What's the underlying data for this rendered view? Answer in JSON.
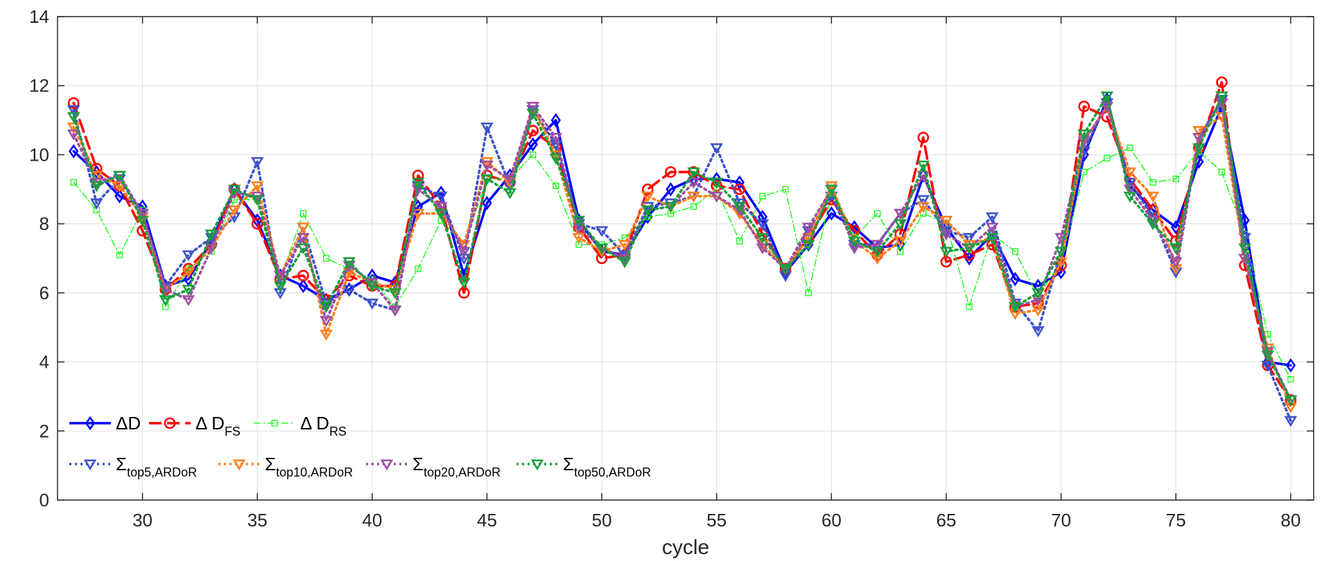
{
  "chart_data": {
    "type": "line",
    "title": "",
    "xlabel": "cycle",
    "ylabel": "",
    "xlim": [
      26.3,
      81.0
    ],
    "ylim": [
      0,
      14
    ],
    "xticks": [
      30,
      35,
      40,
      45,
      50,
      55,
      60,
      65,
      70,
      75,
      80
    ],
    "yticks": [
      0,
      2,
      4,
      6,
      8,
      10,
      12,
      14
    ],
    "grid": true,
    "legend_location": "bottom-left",
    "x": [
      27,
      28,
      29,
      30,
      31,
      32,
      33,
      34,
      35,
      36,
      37,
      38,
      39,
      40,
      41,
      42,
      43,
      44,
      45,
      46,
      47,
      48,
      49,
      50,
      51,
      52,
      53,
      54,
      55,
      56,
      57,
      58,
      59,
      60,
      61,
      62,
      63,
      64,
      65,
      66,
      67,
      68,
      69,
      70,
      71,
      72,
      73,
      74,
      75,
      76,
      77,
      78,
      79,
      80
    ],
    "series": [
      {
        "name": "ΔD",
        "label_main": "ΔD",
        "label_sub": "",
        "color": "#0000ff",
        "dash": "",
        "width": 3.6,
        "marker": "diamond",
        "marker_size": 7,
        "values": [
          10.1,
          9.5,
          8.8,
          8.5,
          6.2,
          6.4,
          7.5,
          9.0,
          8.1,
          6.5,
          6.2,
          5.8,
          6.1,
          6.5,
          6.3,
          8.5,
          8.9,
          6.5,
          8.6,
          9.4,
          10.3,
          11.0,
          8.1,
          7.2,
          7.1,
          8.2,
          9.0,
          9.3,
          9.3,
          9.2,
          8.2,
          6.6,
          7.4,
          8.3,
          7.9,
          7.3,
          7.4,
          9.4,
          7.9,
          7.0,
          7.7,
          6.4,
          6.2,
          6.6,
          10.0,
          11.6,
          9.1,
          8.4,
          7.9,
          9.8,
          11.4,
          8.1,
          4.0,
          3.9
        ]
      },
      {
        "name": "Δ D_FS",
        "label_main": "Δ D",
        "label_sub": "FS",
        "color": "#ff0000",
        "dash": "18,8",
        "width": 3.6,
        "marker": "circle",
        "marker_size": 7,
        "values": [
          11.5,
          9.6,
          9.1,
          7.8,
          6.1,
          6.7,
          7.4,
          9.0,
          8.0,
          6.4,
          6.5,
          5.8,
          6.5,
          6.2,
          6.2,
          9.4,
          8.5,
          6.0,
          9.4,
          9.2,
          10.7,
          10.2,
          7.9,
          7.0,
          7.1,
          9.0,
          9.5,
          9.5,
          9.1,
          9.0,
          7.7,
          6.7,
          7.6,
          8.7,
          7.8,
          7.1,
          7.7,
          10.5,
          6.9,
          7.1,
          7.4,
          5.6,
          5.7,
          6.8,
          11.4,
          11.1,
          9.3,
          8.4,
          7.5,
          10.2,
          12.1,
          6.8,
          3.9,
          2.9
        ]
      },
      {
        "name": "Δ D_RS",
        "label_main": "Δ D",
        "label_sub": "RS",
        "color": "#00ff00",
        "dash": "10,4,2,4",
        "width": 1.3,
        "marker": "square",
        "marker_size": 4,
        "values": [
          9.2,
          8.4,
          7.1,
          8.4,
          5.6,
          6.7,
          7.2,
          8.7,
          8.7,
          6.4,
          8.3,
          7.0,
          6.7,
          6.4,
          5.6,
          6.7,
          8.1,
          7.4,
          9.3,
          9.3,
          10.0,
          9.1,
          7.4,
          7.4,
          7.6,
          8.2,
          8.3,
          8.5,
          9.0,
          7.5,
          8.8,
          9.0,
          6.0,
          8.9,
          7.6,
          8.3,
          7.2,
          8.3,
          8.0,
          5.6,
          7.7,
          7.2,
          5.9,
          6.9,
          9.5,
          9.9,
          10.2,
          9.2,
          9.3,
          10.1,
          9.5,
          7.7,
          4.8,
          3.5
        ]
      },
      {
        "name": "Σ_top5,ARDoR",
        "label_main": "Σ",
        "label_sub": "top5,ARDoR",
        "color": "#3d52c9",
        "dash": "3,5",
        "width": 3.6,
        "marker": "triangle-down",
        "marker_size": 7,
        "values": [
          11.3,
          8.6,
          9.3,
          8.3,
          6.2,
          7.1,
          7.6,
          8.2,
          9.8,
          6.0,
          7.9,
          5.7,
          6.1,
          5.7,
          5.5,
          9.1,
          8.8,
          7.0,
          10.8,
          9.1,
          11.3,
          10.3,
          8.0,
          7.8,
          7.1,
          8.5,
          8.6,
          8.8,
          10.2,
          8.6,
          8.0,
          6.5,
          7.8,
          8.8,
          7.4,
          7.4,
          8.3,
          8.7,
          7.8,
          7.6,
          8.2,
          5.7,
          4.9,
          7.2,
          10.1,
          11.5,
          9.2,
          8.2,
          6.6,
          10.5,
          11.6,
          7.6,
          3.9,
          2.3
        ]
      },
      {
        "name": "Σ_top10,ARDoR",
        "label_main": "Σ",
        "label_sub": "top10,ARDoR",
        "color": "#ff8020",
        "dash": "3,5",
        "width": 3.6,
        "marker": "triangle-down",
        "marker_size": 7,
        "values": [
          10.8,
          9.4,
          9.1,
          8.2,
          6.1,
          6.6,
          7.3,
          8.4,
          9.1,
          6.5,
          7.9,
          4.8,
          6.6,
          6.3,
          6.1,
          8.3,
          8.3,
          7.4,
          9.8,
          9.2,
          11.4,
          10.0,
          7.6,
          7.2,
          7.4,
          8.8,
          8.5,
          8.8,
          8.8,
          8.3,
          7.4,
          6.7,
          7.6,
          9.1,
          7.5,
          7.0,
          7.5,
          8.5,
          8.1,
          7.4,
          7.6,
          5.4,
          5.5,
          6.9,
          10.4,
          11.4,
          9.5,
          8.8,
          6.7,
          10.7,
          11.1,
          7.0,
          4.4,
          2.7
        ]
      },
      {
        "name": "Σ_top20,ARDoR",
        "label_main": "Σ",
        "label_sub": "top20,ARDoR",
        "color": "#9e4fa5",
        "dash": "3,5",
        "width": 3.6,
        "marker": "triangle-down",
        "marker_size": 7,
        "values": [
          10.6,
          9.2,
          9.4,
          8.3,
          6.1,
          5.8,
          7.3,
          8.9,
          8.8,
          6.5,
          7.6,
          5.2,
          6.8,
          6.3,
          5.5,
          9.0,
          8.5,
          7.2,
          9.7,
          9.3,
          11.4,
          10.5,
          7.9,
          7.3,
          7.0,
          8.4,
          8.5,
          9.2,
          8.8,
          8.4,
          7.3,
          6.7,
          7.9,
          9.0,
          7.3,
          7.4,
          8.3,
          9.4,
          7.7,
          7.3,
          7.9,
          5.6,
          5.8,
          7.6,
          10.4,
          11.4,
          9.0,
          8.1,
          6.9,
          10.5,
          11.5,
          7.0,
          4.3,
          2.9
        ]
      },
      {
        "name": "Σ_top50,ARDoR",
        "label_main": "Σ",
        "label_sub": "top50,ARDoR",
        "color": "#1b9e3e",
        "dash": "3,5",
        "width": 3.6,
        "marker": "triangle-down",
        "marker_size": 7,
        "values": [
          11.1,
          9.1,
          9.4,
          8.1,
          5.8,
          6.1,
          7.7,
          9.0,
          8.7,
          6.2,
          7.3,
          5.6,
          6.9,
          6.2,
          6.0,
          9.2,
          8.3,
          6.3,
          9.3,
          8.9,
          11.2,
          9.9,
          8.1,
          7.3,
          6.9,
          8.4,
          8.5,
          9.5,
          9.2,
          8.5,
          7.6,
          6.7,
          7.4,
          9.0,
          7.5,
          7.2,
          8.0,
          9.7,
          7.2,
          7.3,
          7.6,
          5.6,
          6.0,
          7.2,
          10.6,
          11.7,
          8.8,
          8.0,
          7.3,
          10.2,
          11.7,
          7.3,
          4.2,
          2.9
        ]
      }
    ]
  }
}
